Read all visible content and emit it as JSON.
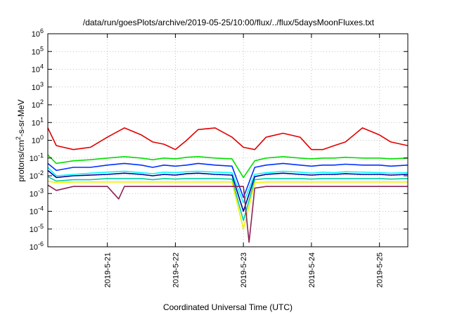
{
  "chart_data": {
    "type": "line",
    "title": "/data/run/goesPlots/archive/2019-05-25/10:00/flux/../flux/5daysMoonFluxes.txt",
    "xlabel": "Coordinated Universal Time (UTC)",
    "ylabel": {
      "base": "protons/cm",
      "sup": "2",
      "rest": "-s-sr-MeV"
    },
    "yscale": "log",
    "ylim": [
      1e-06,
      1000000
    ],
    "xlim": [
      "2019-05-20T03:00",
      "2019-05-25T10:00"
    ],
    "grid": true,
    "x_ticks": [
      {
        "label": "2019-5-21",
        "value": "2019-05-21"
      },
      {
        "label": "2019-5-22",
        "value": "2019-05-22"
      },
      {
        "label": "2019-5-23",
        "value": "2019-05-23"
      },
      {
        "label": "2019-5-24",
        "value": "2019-05-24"
      },
      {
        "label": "2019-5-25",
        "value": "2019-05-25"
      }
    ],
    "y_ticks": [
      {
        "base": "10",
        "exp": "-6",
        "value": 1e-06
      },
      {
        "base": "10",
        "exp": "-5",
        "value": 1e-05
      },
      {
        "base": "10",
        "exp": "-4",
        "value": 0.0001
      },
      {
        "base": "10",
        "exp": "-3",
        "value": 0.001
      },
      {
        "base": "10",
        "exp": "-2",
        "value": 0.01
      },
      {
        "base": "10",
        "exp": "-1",
        "value": 0.1
      },
      {
        "base": "10",
        "exp": "0",
        "value": 1
      },
      {
        "base": "10",
        "exp": "1",
        "value": 10
      },
      {
        "base": "10",
        "exp": "2",
        "value": 100
      },
      {
        "base": "10",
        "exp": "3",
        "value": 1000
      },
      {
        "base": "10",
        "exp": "4",
        "value": 10000
      },
      {
        "base": "10",
        "exp": "5",
        "value": 100000
      },
      {
        "base": "10",
        "exp": "6",
        "value": 1000000
      }
    ],
    "series": [
      {
        "color": "#e00000",
        "x": [
          "2019-05-20T03:00",
          "2019-05-20T06:00",
          "2019-05-20T12:00",
          "2019-05-20T18:00",
          "2019-05-21T00:00",
          "2019-05-21T06:00",
          "2019-05-21T12:00",
          "2019-05-21T16:00",
          "2019-05-21T20:00",
          "2019-05-22T00:00",
          "2019-05-22T04:00",
          "2019-05-22T08:00",
          "2019-05-22T14:00",
          "2019-05-22T20:00",
          "2019-05-23T00:00",
          "2019-05-23T04:00",
          "2019-05-23T08:00",
          "2019-05-23T14:00",
          "2019-05-23T20:00",
          "2019-05-24T00:00",
          "2019-05-24T04:00",
          "2019-05-24T08:00",
          "2019-05-24T12:00",
          "2019-05-24T18:00",
          "2019-05-25T00:00",
          "2019-05-25T04:00",
          "2019-05-25T10:00"
        ],
        "y": [
          5,
          0.5,
          0.3,
          0.4,
          1.5,
          5,
          2,
          0.8,
          0.6,
          0.3,
          1,
          4,
          5,
          1.5,
          0.4,
          0.3,
          1.5,
          2.5,
          1.5,
          0.3,
          0.3,
          0.5,
          0.8,
          5,
          2,
          0.8,
          0.5
        ]
      },
      {
        "color": "#00e000",
        "x": [
          "2019-05-20T03:00",
          "2019-05-20T06:00",
          "2019-05-20T12:00",
          "2019-05-20T18:00",
          "2019-05-21T00:00",
          "2019-05-21T06:00",
          "2019-05-21T12:00",
          "2019-05-21T16:00",
          "2019-05-21T20:00",
          "2019-05-22T00:00",
          "2019-05-22T04:00",
          "2019-05-22T08:00",
          "2019-05-22T14:00",
          "2019-05-22T20:00",
          "2019-05-23T00:00",
          "2019-05-23T04:00",
          "2019-05-23T08:00",
          "2019-05-23T14:00",
          "2019-05-23T20:00",
          "2019-05-24T00:00",
          "2019-05-24T04:00",
          "2019-05-24T08:00",
          "2019-05-24T12:00",
          "2019-05-24T18:00",
          "2019-05-25T00:00",
          "2019-05-25T04:00",
          "2019-05-25T10:00"
        ],
        "y": [
          0.15,
          0.05,
          0.07,
          0.08,
          0.1,
          0.12,
          0.1,
          0.08,
          0.1,
          0.09,
          0.11,
          0.12,
          0.1,
          0.09,
          0.008,
          0.07,
          0.1,
          0.12,
          0.1,
          0.09,
          0.1,
          0.1,
          0.11,
          0.1,
          0.1,
          0.09,
          0.1
        ]
      },
      {
        "color": "#00ffff",
        "x": [
          "2019-05-20T03:00",
          "2019-05-20T06:00",
          "2019-05-20T12:00",
          "2019-05-20T18:00",
          "2019-05-21T00:00",
          "2019-05-21T06:00",
          "2019-05-21T12:00",
          "2019-05-21T16:00",
          "2019-05-21T20:00",
          "2019-05-22T00:00",
          "2019-05-22T04:00",
          "2019-05-22T08:00",
          "2019-05-22T14:00",
          "2019-05-22T20:00",
          "2019-05-23T00:00",
          "2019-05-23T04:00",
          "2019-05-23T08:00",
          "2019-05-23T14:00",
          "2019-05-23T20:00",
          "2019-05-24T00:00",
          "2019-05-24T04:00",
          "2019-05-24T08:00",
          "2019-05-24T12:00",
          "2019-05-24T18:00",
          "2019-05-25T00:00",
          "2019-05-25T04:00",
          "2019-05-25T10:00"
        ],
        "y": [
          0.03,
          0.01,
          0.012,
          0.014,
          0.016,
          0.018,
          0.015,
          0.013,
          0.016,
          0.015,
          0.017,
          0.018,
          0.016,
          0.015,
          0.0003,
          0.012,
          0.015,
          0.018,
          0.016,
          0.014,
          0.016,
          0.015,
          0.017,
          0.016,
          0.015,
          0.014,
          0.015
        ]
      },
      {
        "color": "#0030ff",
        "x": [
          "2019-05-20T03:00",
          "2019-05-20T06:00",
          "2019-05-20T12:00",
          "2019-05-20T18:00",
          "2019-05-21T00:00",
          "2019-05-21T06:00",
          "2019-05-21T12:00",
          "2019-05-21T16:00",
          "2019-05-21T20:00",
          "2019-05-22T00:00",
          "2019-05-22T04:00",
          "2019-05-22T08:00",
          "2019-05-22T14:00",
          "2019-05-22T20:00",
          "2019-05-23T00:00",
          "2019-05-23T04:00",
          "2019-05-23T08:00",
          "2019-05-23T14:00",
          "2019-05-23T20:00",
          "2019-05-24T00:00",
          "2019-05-24T04:00",
          "2019-05-24T08:00",
          "2019-05-24T12:00",
          "2019-05-24T18:00",
          "2019-05-25T00:00",
          "2019-05-25T04:00",
          "2019-05-25T10:00"
        ],
        "y": [
          0.05,
          0.02,
          0.03,
          0.03,
          0.04,
          0.05,
          0.04,
          0.03,
          0.04,
          0.035,
          0.04,
          0.05,
          0.04,
          0.035,
          0.0006,
          0.03,
          0.04,
          0.05,
          0.04,
          0.035,
          0.04,
          0.04,
          0.045,
          0.04,
          0.04,
          0.035,
          0.04
        ]
      },
      {
        "color": "#0000a0",
        "x": [
          "2019-05-20T03:00",
          "2019-05-20T06:00",
          "2019-05-20T12:00",
          "2019-05-20T18:00",
          "2019-05-21T00:00",
          "2019-05-21T06:00",
          "2019-05-21T12:00",
          "2019-05-21T16:00",
          "2019-05-21T20:00",
          "2019-05-22T00:00",
          "2019-05-22T04:00",
          "2019-05-22T08:00",
          "2019-05-22T14:00",
          "2019-05-22T20:00",
          "2019-05-23T00:00",
          "2019-05-23T04:00",
          "2019-05-23T08:00",
          "2019-05-23T14:00",
          "2019-05-23T20:00",
          "2019-05-24T00:00",
          "2019-05-24T04:00",
          "2019-05-24T08:00",
          "2019-05-24T12:00",
          "2019-05-24T18:00",
          "2019-05-25T00:00",
          "2019-05-25T04:00",
          "2019-05-25T10:00"
        ],
        "y": [
          0.02,
          0.008,
          0.01,
          0.011,
          0.012,
          0.014,
          0.012,
          0.01,
          0.012,
          0.011,
          0.013,
          0.014,
          0.012,
          0.011,
          0.0001,
          0.009,
          0.012,
          0.014,
          0.012,
          0.011,
          0.012,
          0.012,
          0.013,
          0.012,
          0.012,
          0.011,
          0.012
        ]
      },
      {
        "color": "#00d0a0",
        "x": [
          "2019-05-20T03:00",
          "2019-05-20T06:00",
          "2019-05-20T12:00",
          "2019-05-20T18:00",
          "2019-05-21T00:00",
          "2019-05-21T06:00",
          "2019-05-21T12:00",
          "2019-05-21T16:00",
          "2019-05-21T20:00",
          "2019-05-22T00:00",
          "2019-05-22T04:00",
          "2019-05-22T08:00",
          "2019-05-22T14:00",
          "2019-05-22T20:00",
          "2019-05-23T00:00",
          "2019-05-23T04:00",
          "2019-05-23T08:00",
          "2019-05-23T14:00",
          "2019-05-23T20:00",
          "2019-05-24T00:00",
          "2019-05-24T04:00",
          "2019-05-24T08:00",
          "2019-05-24T12:00",
          "2019-05-24T18:00",
          "2019-05-25T00:00",
          "2019-05-25T04:00",
          "2019-05-25T10:00"
        ],
        "y": [
          0.009,
          0.005,
          0.006,
          0.006,
          0.007,
          0.007,
          0.007,
          0.006,
          0.007,
          0.0065,
          0.007,
          0.007,
          0.007,
          0.0065,
          3e-05,
          0.006,
          0.007,
          0.007,
          0.007,
          0.0065,
          0.007,
          0.007,
          0.007,
          0.007,
          0.007,
          0.0065,
          0.007
        ]
      },
      {
        "color": "#f0f000",
        "x": [
          "2019-05-20T03:00",
          "2019-05-20T06:00",
          "2019-05-20T12:00",
          "2019-05-20T18:00",
          "2019-05-21T00:00",
          "2019-05-21T06:00",
          "2019-05-21T12:00",
          "2019-05-21T16:00",
          "2019-05-21T20:00",
          "2019-05-22T00:00",
          "2019-05-22T04:00",
          "2019-05-22T08:00",
          "2019-05-22T14:00",
          "2019-05-22T20:00",
          "2019-05-23T00:00",
          "2019-05-23T04:00",
          "2019-05-23T08:00",
          "2019-05-23T14:00",
          "2019-05-23T20:00",
          "2019-05-24T00:00",
          "2019-05-24T04:00",
          "2019-05-24T08:00",
          "2019-05-24T12:00",
          "2019-05-24T18:00",
          "2019-05-25T00:00",
          "2019-05-25T04:00",
          "2019-05-25T10:00"
        ],
        "y": [
          0.005,
          0.004,
          0.0045,
          0.0045,
          0.0045,
          0.0045,
          0.0045,
          0.0045,
          0.0045,
          0.0045,
          0.0045,
          0.0045,
          0.0045,
          0.0045,
          1e-05,
          0.004,
          0.0045,
          0.0045,
          0.0045,
          0.0045,
          0.0045,
          0.0045,
          0.0045,
          0.0045,
          0.0045,
          0.0045,
          0.0045
        ]
      },
      {
        "color": "#8b2252",
        "x": [
          "2019-05-20T03:00",
          "2019-05-20T06:00",
          "2019-05-20T12:00",
          "2019-05-20T18:00",
          "2019-05-21T00:00",
          "2019-05-21T04:00",
          "2019-05-21T06:00",
          "2019-05-21T12:00",
          "2019-05-21T16:00",
          "2019-05-21T20:00",
          "2019-05-22T00:00",
          "2019-05-22T04:00",
          "2019-05-22T08:00",
          "2019-05-22T14:00",
          "2019-05-22T20:00",
          "2019-05-23T00:00",
          "2019-05-23T02:00",
          "2019-05-23T04:00",
          "2019-05-23T08:00",
          "2019-05-23T14:00",
          "2019-05-23T20:00",
          "2019-05-24T00:00",
          "2019-05-24T04:00",
          "2019-05-24T08:00",
          "2019-05-24T12:00",
          "2019-05-24T18:00",
          "2019-05-25T00:00",
          "2019-05-25T04:00",
          "2019-05-25T10:00"
        ],
        "y": [
          0.003,
          0.0015,
          0.0025,
          0.0025,
          0.0025,
          0.0005,
          0.0025,
          0.0025,
          0.0025,
          0.0025,
          0.0025,
          0.0025,
          0.0025,
          0.0025,
          0.0025,
          0.0025,
          1.8e-06,
          0.002,
          0.0025,
          0.0025,
          0.0025,
          0.0025,
          0.0025,
          0.0025,
          0.0025,
          0.0025,
          0.0025,
          0.0025,
          0.0025
        ]
      }
    ]
  }
}
